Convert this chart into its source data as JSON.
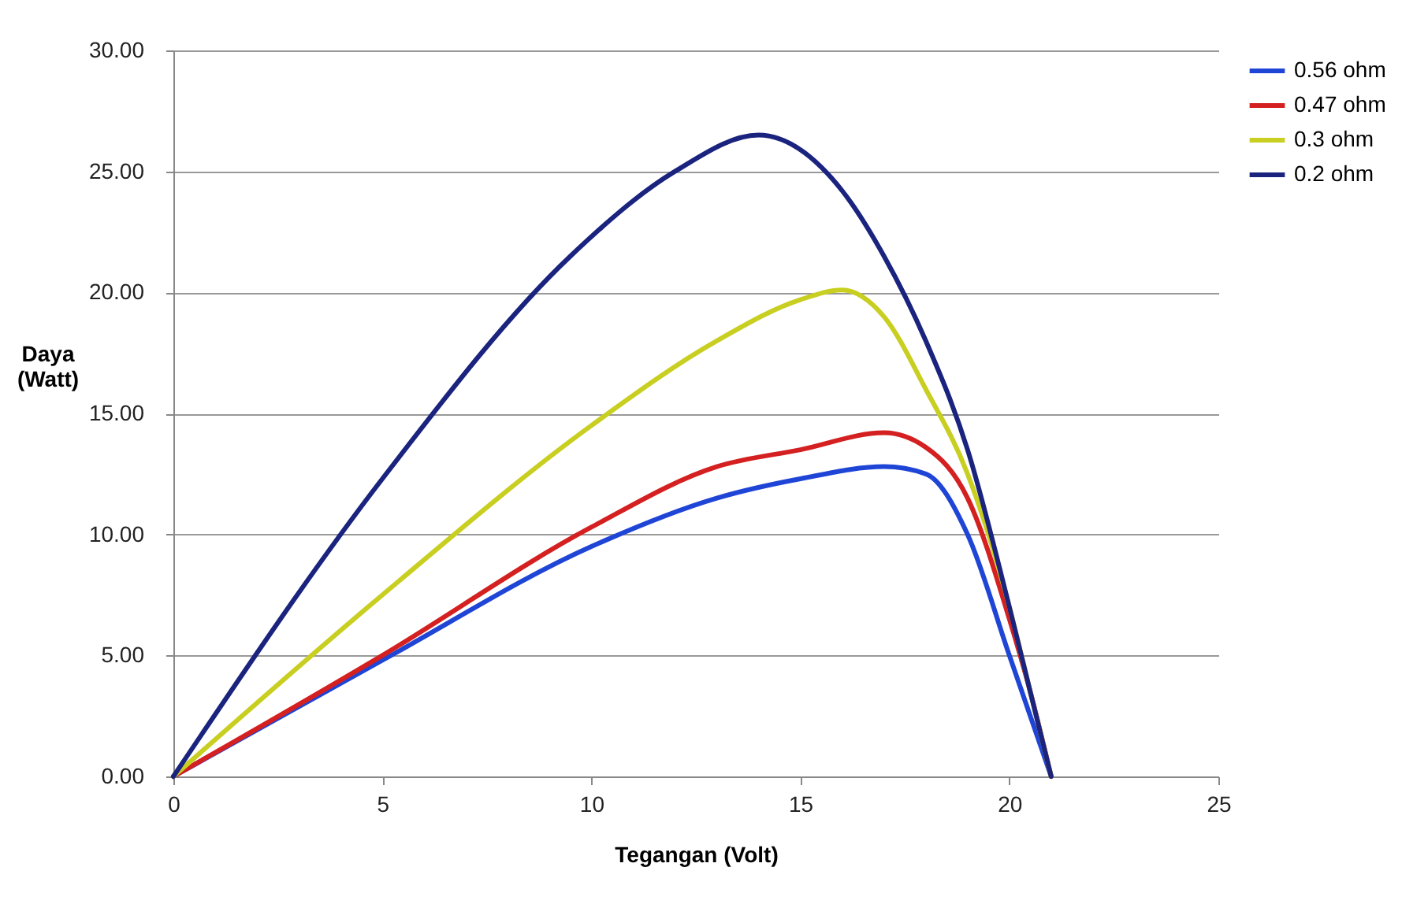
{
  "chart_data": {
    "type": "line",
    "xlabel": "Tegangan (Volt)",
    "ylabel": "Daya (Watt)",
    "xlim": [
      0,
      25
    ],
    "xticks": [
      0,
      5,
      10,
      15,
      20,
      25
    ],
    "ylim": [
      0,
      30
    ],
    "yticks": [
      {
        "value": 0,
        "label": "0.00"
      },
      {
        "value": 5,
        "label": "5.00"
      },
      {
        "value": 10,
        "label": "10.00"
      },
      {
        "value": 15,
        "label": "15.00"
      },
      {
        "value": 20,
        "label": "20.00"
      },
      {
        "value": 25,
        "label": "25.00"
      },
      {
        "value": 30,
        "label": "30.00"
      }
    ],
    "grid": "y",
    "legend": "right",
    "marker": "none",
    "line_style": "solid",
    "series": [
      {
        "name": "0.56 ohm",
        "color": "#1f45d6",
        "x": [
          0,
          5,
          10,
          13,
          15,
          17,
          18,
          19,
          20,
          20.5,
          21
        ],
        "values": [
          0,
          4.8,
          9.5,
          11.5,
          12.3,
          12.8,
          12.5,
          10,
          5,
          2.5,
          0
        ]
      },
      {
        "name": "0.47 ohm",
        "color": "#d42020",
        "x": [
          0,
          5,
          10,
          13,
          15,
          17,
          18,
          19,
          20,
          20.5,
          21
        ],
        "values": [
          0,
          5,
          10.3,
          12.8,
          13.5,
          14.2,
          13.6,
          11.5,
          6.5,
          3.5,
          0
        ]
      },
      {
        "name": "0.3 ohm",
        "color": "#c8cf20",
        "x": [
          0,
          5,
          10,
          13,
          15,
          16,
          17,
          18,
          19,
          20,
          20.5,
          21
        ],
        "values": [
          0,
          7.5,
          14.5,
          18,
          19.7,
          20.1,
          19,
          16,
          12.5,
          7,
          3.5,
          0
        ]
      },
      {
        "name": "0.2 ohm",
        "color": "#1a237e",
        "x": [
          0,
          5,
          9.5,
          12,
          14,
          16,
          17,
          18,
          19,
          20,
          20.5,
          21
        ],
        "values": [
          0,
          12.3,
          21.5,
          25,
          26.5,
          24.2,
          21.5,
          18,
          13.5,
          7,
          3.5,
          0
        ]
      }
    ]
  }
}
